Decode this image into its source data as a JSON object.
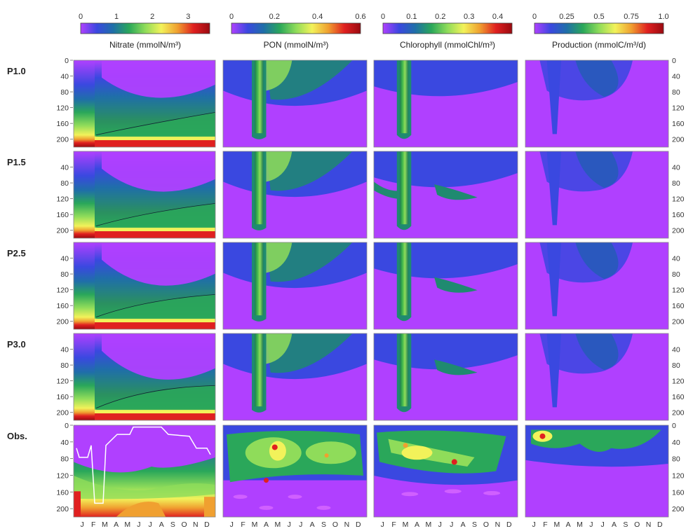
{
  "chart_data": {
    "type": "heatmap",
    "colormap": [
      "#b040ff",
      "#3a48e0",
      "#1f6fa8",
      "#2aa75a",
      "#8fdc5a",
      "#f2f25a",
      "#f0a030",
      "#e02020",
      "#9a0a10"
    ],
    "months": [
      "J",
      "F",
      "M",
      "A",
      "M",
      "J",
      "J",
      "A",
      "S",
      "O",
      "N",
      "D"
    ],
    "depth_ticks": [
      "0",
      "40",
      "80",
      "120",
      "160",
      "200"
    ],
    "depth_range": [
      0,
      220
    ],
    "rows": [
      {
        "label": "P1.0",
        "depth_ticks": [
          "0",
          "40",
          "80",
          "120",
          "160",
          "200"
        ]
      },
      {
        "label": "P1.5",
        "depth_ticks": [
          "40",
          "80",
          "120",
          "160",
          "200"
        ]
      },
      {
        "label": "P2.5",
        "depth_ticks": [
          "40",
          "80",
          "120",
          "160",
          "200"
        ]
      },
      {
        "label": "P3.0",
        "depth_ticks": [
          "40",
          "80",
          "120",
          "160",
          "200"
        ]
      },
      {
        "label": "Obs.",
        "depth_ticks": [
          "0",
          "40",
          "80",
          "120",
          "160",
          "200"
        ]
      }
    ],
    "variables": [
      {
        "title": "Nitrate (mmolN/m³)",
        "ticks": [
          "0",
          "1",
          "2",
          "3"
        ],
        "range": [
          0,
          3.6
        ]
      },
      {
        "title": "PON (mmolN/m³)",
        "ticks": [
          "0",
          "0.2",
          "0.4",
          "0.6"
        ],
        "range": [
          0,
          0.6
        ]
      },
      {
        "title": "Chlorophyll (mmolChl/m³)",
        "ticks": [
          "0",
          "0.1",
          "0.2",
          "0.3",
          "0.4"
        ],
        "range": [
          0,
          0.45
        ]
      },
      {
        "title": "Production (mmolC/m³/d)",
        "ticks": [
          "0",
          "0.25",
          "0.5",
          "0.75",
          "1.0"
        ],
        "range": [
          0,
          1.0
        ]
      }
    ]
  }
}
